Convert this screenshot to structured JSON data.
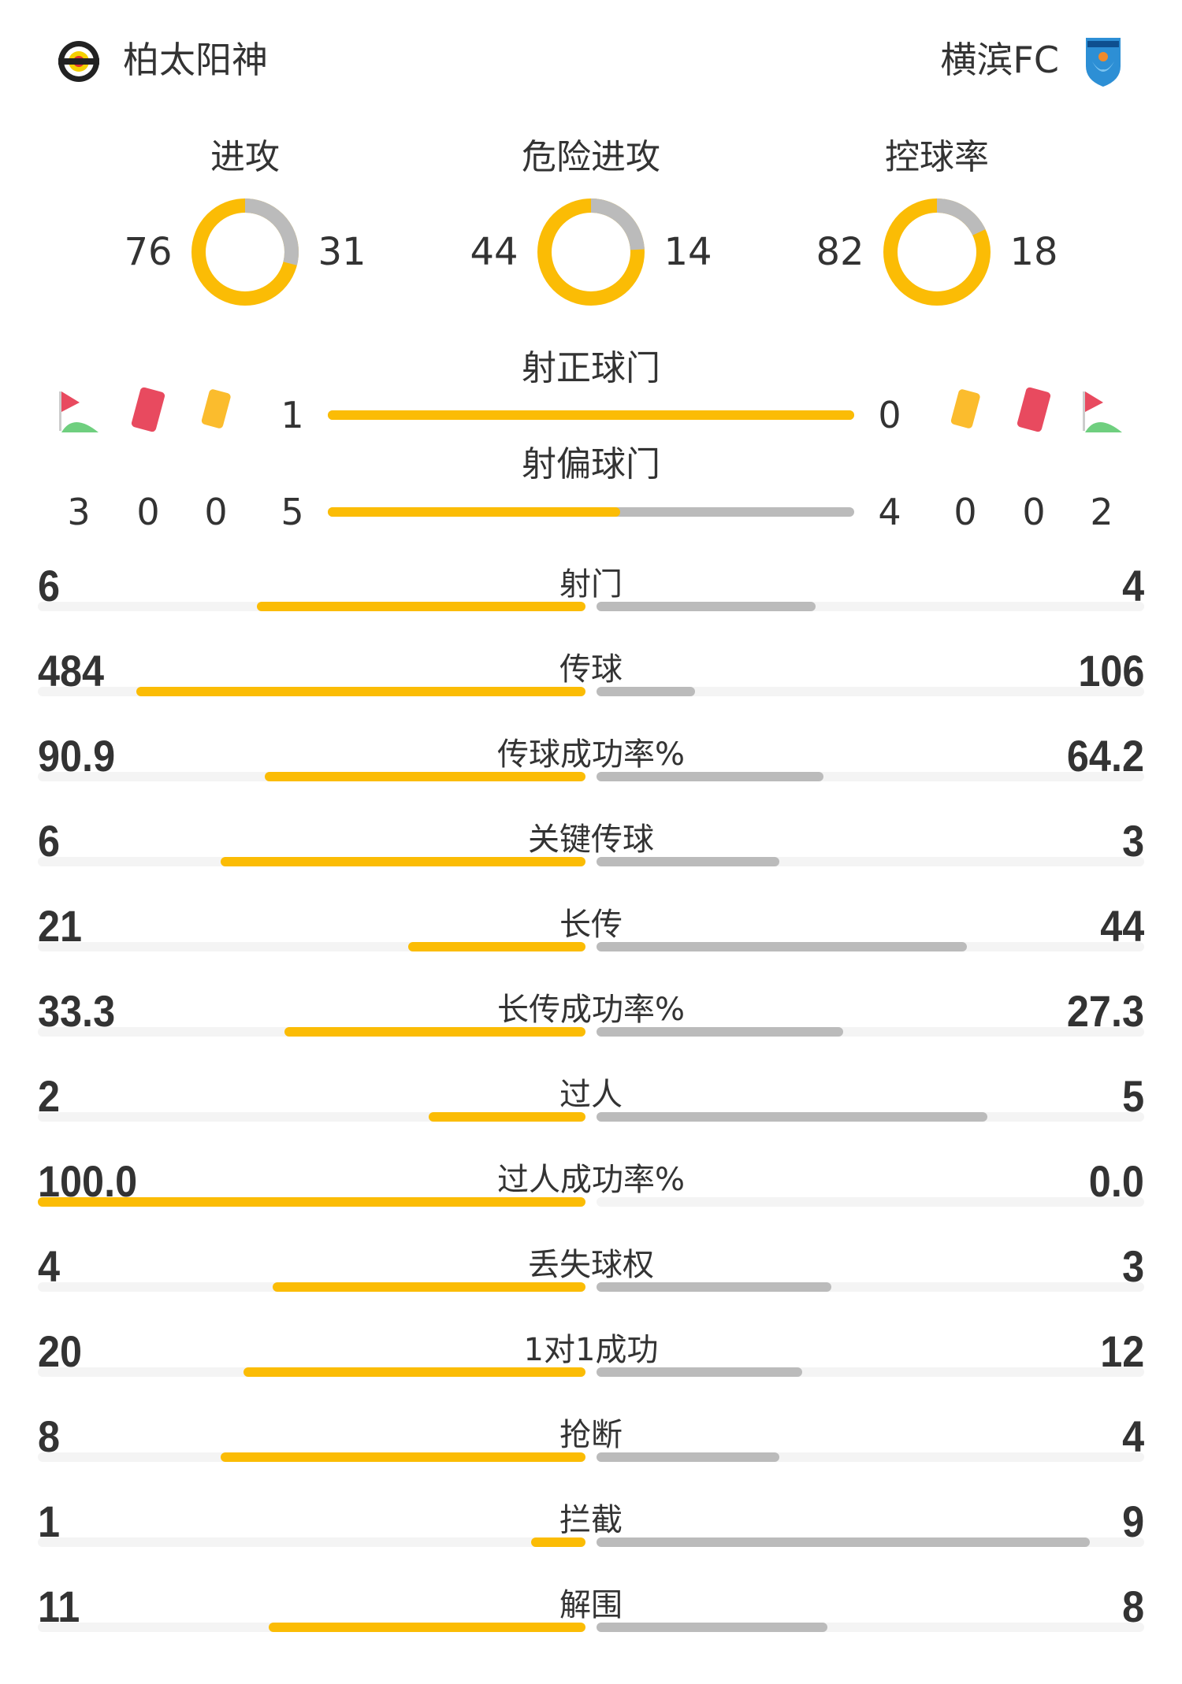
{
  "colors": {
    "home": "#fbbc05",
    "away": "#bbbbbb",
    "track": "#f4f4f4",
    "text": "#333333"
  },
  "home": {
    "name": "柏太阳神",
    "logo_icon": "kashiwa-reysol-crest"
  },
  "away": {
    "name": "横滨FC",
    "logo_icon": "yokohama-fc-crest"
  },
  "donuts": [
    {
      "title": "进攻",
      "home": 76,
      "away": 31
    },
    {
      "title": "危险进攻",
      "home": 44,
      "away": 14
    },
    {
      "title": "控球率",
      "home": 82,
      "away": 18
    }
  ],
  "shots": {
    "on_target": {
      "title": "射正球门",
      "home": 1,
      "away": 0
    },
    "off_target": {
      "title": "射偏球门",
      "home": 5,
      "away": 4
    }
  },
  "events": {
    "home": {
      "corners": 3,
      "red_cards": 0,
      "yellow_cards": 0
    },
    "away": {
      "yellow_cards": 0,
      "red_cards": 0,
      "corners": 2
    }
  },
  "stats": [
    {
      "label": "射门",
      "home": "6",
      "away": "4"
    },
    {
      "label": "传球",
      "home": "484",
      "away": "106"
    },
    {
      "label": "传球成功率%",
      "home": "90.9",
      "away": "64.2"
    },
    {
      "label": "关键传球",
      "home": "6",
      "away": "3"
    },
    {
      "label": "长传",
      "home": "21",
      "away": "44"
    },
    {
      "label": "长传成功率%",
      "home": "33.3",
      "away": "27.3"
    },
    {
      "label": "过人",
      "home": "2",
      "away": "5"
    },
    {
      "label": "过人成功率%",
      "home": "100.0",
      "away": "0.0"
    },
    {
      "label": "丢失球权",
      "home": "4",
      "away": "3"
    },
    {
      "label": "1对1成功",
      "home": "20",
      "away": "12"
    },
    {
      "label": "抢断",
      "home": "8",
      "away": "4"
    },
    {
      "label": "拦截",
      "home": "1",
      "away": "9"
    },
    {
      "label": "解围",
      "home": "11",
      "away": "8"
    }
  ]
}
